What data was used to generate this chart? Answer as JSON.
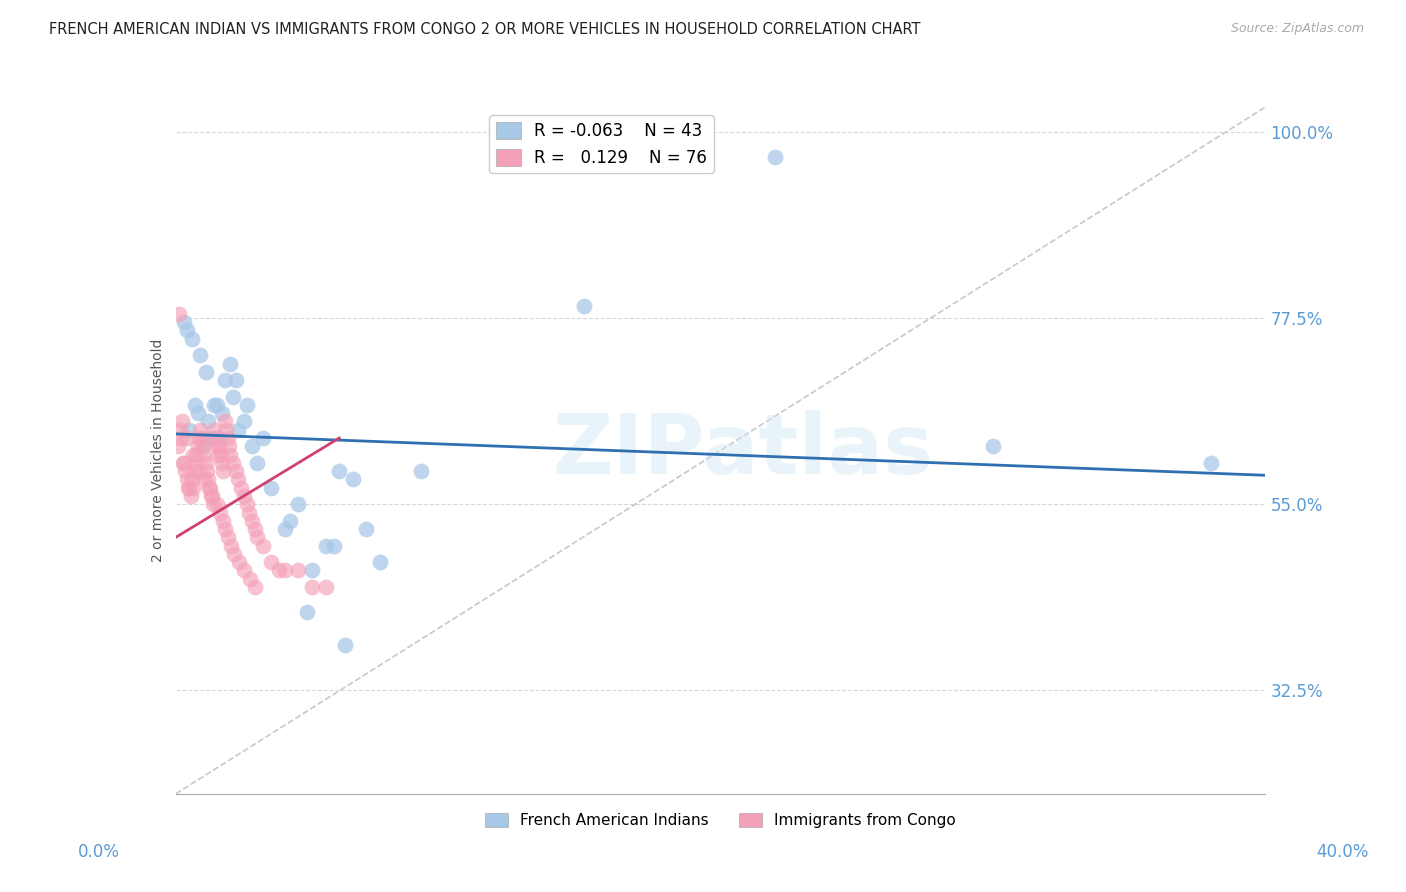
{
  "title": "FRENCH AMERICAN INDIAN VS IMMIGRANTS FROM CONGO 2 OR MORE VEHICLES IN HOUSEHOLD CORRELATION CHART",
  "source": "Source: ZipAtlas.com",
  "ylabel": "2 or more Vehicles in Household",
  "xlim": [
    0.0,
    40.0
  ],
  "ylim": [
    20.0,
    103.0
  ],
  "yticks": [
    32.5,
    55.0,
    77.5,
    100.0
  ],
  "legend_blue_r": "-0.063",
  "legend_blue_n": "43",
  "legend_pink_r": "0.129",
  "legend_pink_n": "76",
  "legend_blue_label": "French American Indians",
  "legend_pink_label": "Immigrants from Congo",
  "blue_color": "#a8c8e8",
  "pink_color": "#f4a0b8",
  "blue_line_color": "#3070b0",
  "pink_line_color": "#d04070",
  "ref_line_color": "#c8c8c8",
  "axis_tick_color": "#5b9bd5",
  "watermark": "ZIPatlas",
  "blue_trend_x0": 0.0,
  "blue_trend_y0": 63.5,
  "blue_trend_x1": 40.0,
  "blue_trend_y1": 58.5,
  "pink_trend_x0": 0.0,
  "pink_trend_y0": 51.0,
  "pink_trend_x1": 6.0,
  "pink_trend_y1": 63.0,
  "blue_x": [
    0.5,
    0.7,
    0.8,
    1.0,
    1.2,
    1.4,
    1.5,
    1.6,
    1.8,
    2.0,
    2.1,
    2.2,
    2.3,
    2.5,
    2.6,
    2.8,
    3.0,
    3.2,
    3.5,
    4.0,
    4.2,
    4.5,
    4.8,
    5.0,
    5.5,
    5.8,
    6.0,
    6.2,
    6.5,
    7.0,
    7.5,
    9.0,
    15.0,
    22.0,
    30.0,
    0.3,
    0.4,
    0.6,
    0.9,
    1.1,
    1.3,
    1.7,
    38.0
  ],
  "blue_y": [
    64,
    67,
    66,
    62,
    65,
    67,
    67,
    63,
    70,
    72,
    68,
    70,
    64,
    65,
    67,
    62,
    60,
    63,
    57,
    52,
    53,
    55,
    42,
    47,
    50,
    50,
    59,
    38,
    58,
    52,
    48,
    59,
    79,
    97,
    62,
    77,
    76,
    75,
    73,
    71,
    63,
    66,
    60
  ],
  "pink_x": [
    0.1,
    0.15,
    0.2,
    0.25,
    0.3,
    0.35,
    0.4,
    0.45,
    0.5,
    0.55,
    0.6,
    0.65,
    0.7,
    0.75,
    0.8,
    0.85,
    0.9,
    0.95,
    1.0,
    1.05,
    1.1,
    1.15,
    1.2,
    1.25,
    1.3,
    1.35,
    1.4,
    1.45,
    1.5,
    1.55,
    1.6,
    1.65,
    1.7,
    1.75,
    1.8,
    1.85,
    1.9,
    1.95,
    2.0,
    2.1,
    2.2,
    2.3,
    2.4,
    2.5,
    2.6,
    2.7,
    2.8,
    2.9,
    3.0,
    3.2,
    3.5,
    3.8,
    4.0,
    4.5,
    5.0,
    5.5,
    0.22,
    0.42,
    0.62,
    0.72,
    0.82,
    1.02,
    1.22,
    1.32,
    1.52,
    1.62,
    1.72,
    1.82,
    1.92,
    2.02,
    2.12,
    2.32,
    2.52,
    2.72,
    2.92,
    0.12
  ],
  "pink_y": [
    62,
    64,
    63,
    60,
    60,
    59,
    58,
    57,
    57,
    56,
    58,
    57,
    59,
    61,
    62,
    63,
    64,
    63,
    62,
    61,
    60,
    59,
    58,
    57,
    56,
    55,
    64,
    63,
    62,
    61,
    62,
    61,
    60,
    59,
    65,
    64,
    63,
    62,
    61,
    60,
    59,
    58,
    57,
    56,
    55,
    54,
    53,
    52,
    51,
    50,
    48,
    47,
    47,
    47,
    45,
    45,
    65,
    63,
    61,
    60,
    59,
    58,
    57,
    56,
    55,
    54,
    53,
    52,
    51,
    50,
    49,
    48,
    47,
    46,
    45,
    78
  ]
}
